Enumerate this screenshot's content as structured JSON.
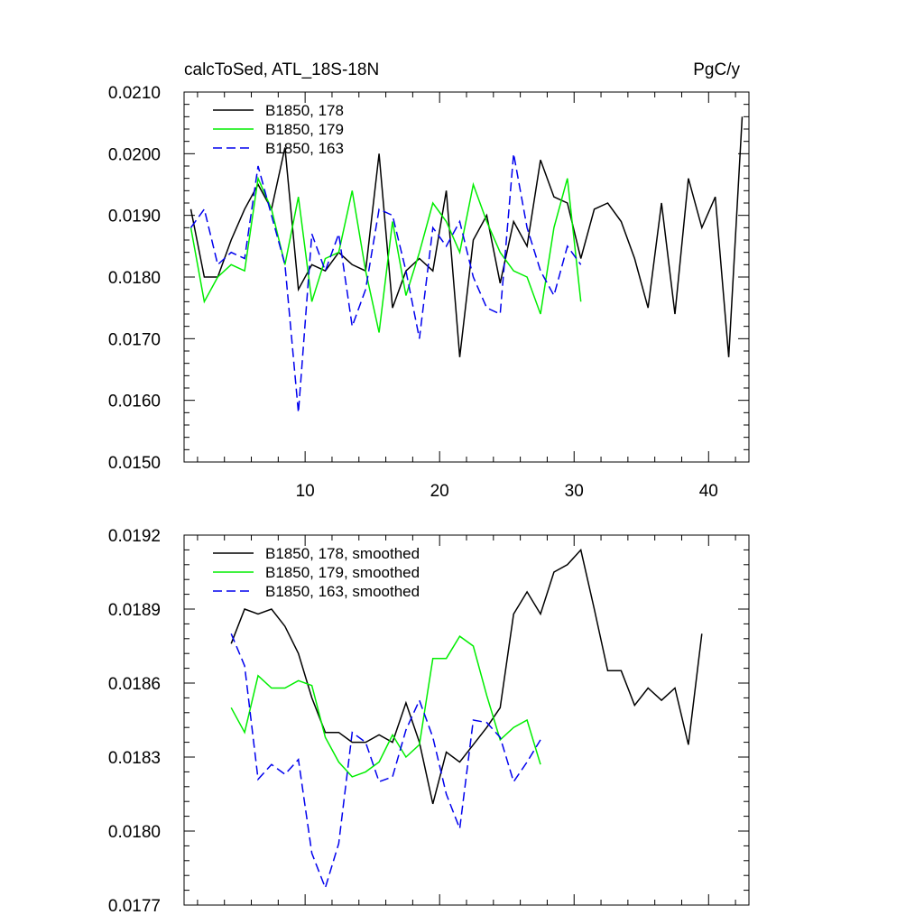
{
  "chart_data": [
    {
      "type": "line",
      "title": "calcToSed, ATL_18S-18N",
      "units_label": "PgC/y",
      "xlim": [
        1,
        43
      ],
      "ylim": [
        0.015,
        0.021
      ],
      "x_ticks": [
        10,
        20,
        30,
        40
      ],
      "x_tick_labels": [
        "10",
        "20",
        "30",
        "40"
      ],
      "y_ticks": [
        0.015,
        0.016,
        0.017,
        0.018,
        0.019,
        0.02,
        0.021
      ],
      "y_tick_labels": [
        "0.0150",
        "0.0160",
        "0.0170",
        "0.0180",
        "0.0190",
        "0.0200",
        "0.0210"
      ],
      "legend_position": "top-left",
      "series": [
        {
          "name": "B1850, 178",
          "color": "#000000",
          "dash": "solid",
          "x": [
            1.5,
            2.5,
            3.5,
            4.5,
            5.5,
            6.5,
            7.5,
            8.5,
            9.5,
            10.5,
            11.5,
            12.5,
            13.5,
            14.5,
            15.5,
            16.5,
            17.5,
            18.5,
            19.5,
            20.5,
            21.5,
            22.5,
            23.5,
            24.5,
            25.5,
            26.5,
            27.5,
            28.5,
            29.5,
            30.5,
            31.5,
            32.5,
            33.5,
            34.5,
            35.5,
            36.5,
            37.5,
            38.5,
            39.5,
            40.5,
            41.5,
            42.5
          ],
          "values": [
            0.0191,
            0.018,
            0.018,
            0.0186,
            0.0191,
            0.0195,
            0.0191,
            0.0201,
            0.0178,
            0.0182,
            0.0181,
            0.0184,
            0.0182,
            0.0181,
            0.02,
            0.0175,
            0.0181,
            0.0183,
            0.0181,
            0.0194,
            0.0167,
            0.0186,
            0.019,
            0.0179,
            0.0189,
            0.0185,
            0.0199,
            0.0193,
            0.0192,
            0.0183,
            0.0191,
            0.0192,
            0.0189,
            0.0183,
            0.0175,
            0.0192,
            0.0174,
            0.0196,
            0.0188,
            0.0193,
            0.0167,
            0.0206
          ]
        },
        {
          "name": "B1850, 179",
          "color": "#00ee00",
          "dash": "solid",
          "x": [
            1.5,
            2.5,
            3.5,
            4.5,
            5.5,
            6.5,
            7.5,
            8.5,
            9.5,
            10.5,
            11.5,
            12.5,
            13.5,
            14.5,
            15.5,
            16.5,
            17.5,
            18.5,
            19.5,
            20.5,
            21.5,
            22.5,
            23.5,
            24.5,
            25.5,
            26.5,
            27.5,
            28.5,
            29.5,
            30.5
          ],
          "values": [
            0.0188,
            0.0176,
            0.018,
            0.0182,
            0.0181,
            0.0196,
            0.0191,
            0.0182,
            0.0193,
            0.0176,
            0.0183,
            0.0184,
            0.0194,
            0.0181,
            0.0171,
            0.0189,
            0.0177,
            0.0184,
            0.0192,
            0.0189,
            0.0184,
            0.0195,
            0.0189,
            0.0184,
            0.0181,
            0.018,
            0.0174,
            0.0188,
            0.0196,
            0.0176
          ]
        },
        {
          "name": "B1850, 163",
          "color": "#0000ee",
          "dash": "dashed",
          "x": [
            1.5,
            2.5,
            3.5,
            4.5,
            5.5,
            6.5,
            7.5,
            8.5,
            9.5,
            10.5,
            11.5,
            12.5,
            13.5,
            14.5,
            15.5,
            16.5,
            17.5,
            18.5,
            19.5,
            20.5,
            21.5,
            22.5,
            23.5,
            24.5,
            25.5,
            26.5,
            27.5,
            28.5,
            29.5,
            30.5
          ],
          "values": [
            0.0188,
            0.0191,
            0.0182,
            0.0184,
            0.0183,
            0.0198,
            0.019,
            0.0182,
            0.0158,
            0.0187,
            0.0181,
            0.0187,
            0.0172,
            0.0178,
            0.0191,
            0.019,
            0.0181,
            0.017,
            0.0188,
            0.0185,
            0.0189,
            0.018,
            0.0175,
            0.0174,
            0.02,
            0.0188,
            0.0181,
            0.0177,
            0.0185,
            0.0182
          ]
        }
      ]
    },
    {
      "type": "line",
      "xlim": [
        1,
        43
      ],
      "ylim": [
        0.0177,
        0.0192
      ],
      "x_ticks": [
        10,
        20,
        30,
        40
      ],
      "y_ticks": [
        0.0177,
        0.018,
        0.0183,
        0.0186,
        0.0189,
        0.0192
      ],
      "y_tick_labels": [
        "0.0177",
        "0.0180",
        "0.0183",
        "0.0186",
        "0.0189",
        "0.0192"
      ],
      "legend_position": "top-left",
      "series": [
        {
          "name": "B1850, 178, smoothed",
          "color": "#000000",
          "dash": "solid",
          "x": [
            4.5,
            5.5,
            6.5,
            7.5,
            8.5,
            9.5,
            10.5,
            11.5,
            12.5,
            13.5,
            14.5,
            15.5,
            16.5,
            17.5,
            18.5,
            19.5,
            20.5,
            21.5,
            22.5,
            23.5,
            24.5,
            25.5,
            26.5,
            27.5,
            28.5,
            29.5,
            30.5,
            31.5,
            32.5,
            33.5,
            34.5,
            35.5,
            36.5,
            37.5,
            38.5,
            39.5
          ],
          "values": [
            0.01876,
            0.0189,
            0.01888,
            0.0189,
            0.01883,
            0.01872,
            0.01854,
            0.0184,
            0.0184,
            0.01836,
            0.01836,
            0.01839,
            0.01836,
            0.01852,
            0.01836,
            0.01811,
            0.01832,
            0.01828,
            0.01835,
            0.01842,
            0.0185,
            0.01888,
            0.01897,
            0.01888,
            0.01905,
            0.01908,
            0.01914,
            0.0189,
            0.01865,
            0.01865,
            0.01851,
            0.01858,
            0.01853,
            0.01858,
            0.01835,
            0.0188
          ]
        },
        {
          "name": "B1850, 179, smoothed",
          "color": "#00ee00",
          "dash": "solid",
          "x": [
            4.5,
            5.5,
            6.5,
            7.5,
            8.5,
            9.5,
            10.5,
            11.5,
            12.5,
            13.5,
            14.5,
            15.5,
            16.5,
            17.5,
            18.5,
            19.5,
            20.5,
            21.5,
            22.5,
            23.5,
            24.5,
            25.5,
            26.5,
            27.5
          ],
          "values": [
            0.0185,
            0.0184,
            0.01863,
            0.01858,
            0.01858,
            0.01861,
            0.01859,
            0.01838,
            0.01828,
            0.01822,
            0.01824,
            0.01828,
            0.01839,
            0.0183,
            0.01835,
            0.0187,
            0.0187,
            0.01879,
            0.01875,
            0.01855,
            0.01837,
            0.01842,
            0.01845,
            0.01827
          ]
        },
        {
          "name": "B1850, 163, smoothed",
          "color": "#0000ee",
          "dash": "dashed",
          "x": [
            4.5,
            5.5,
            6.5,
            7.5,
            8.5,
            9.5,
            10.5,
            11.5,
            12.5,
            13.5,
            14.5,
            15.5,
            16.5,
            17.5,
            18.5,
            19.5,
            20.5,
            21.5,
            22.5,
            23.5,
            24.5,
            25.5,
            26.5,
            27.5
          ],
          "values": [
            0.0188,
            0.01867,
            0.01821,
            0.01827,
            0.01823,
            0.01829,
            0.01791,
            0.01777,
            0.01795,
            0.0184,
            0.01836,
            0.0182,
            0.01822,
            0.01841,
            0.01853,
            0.01838,
            0.01815,
            0.01801,
            0.01845,
            0.01844,
            0.01838,
            0.0182,
            0.01828,
            0.01837
          ]
        }
      ]
    }
  ]
}
